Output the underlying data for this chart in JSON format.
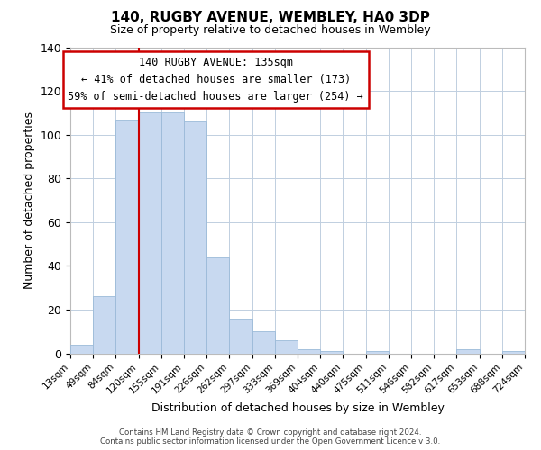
{
  "title": "140, RUGBY AVENUE, WEMBLEY, HA0 3DP",
  "subtitle": "Size of property relative to detached houses in Wembley",
  "xlabel": "Distribution of detached houses by size in Wembley",
  "ylabel": "Number of detached properties",
  "bar_values": [
    4,
    26,
    107,
    110,
    110,
    106,
    44,
    16,
    10,
    6,
    2,
    1,
    0,
    1,
    0,
    0,
    0,
    2,
    0,
    1
  ],
  "bin_labels": [
    "13sqm",
    "49sqm",
    "84sqm",
    "120sqm",
    "155sqm",
    "191sqm",
    "226sqm",
    "262sqm",
    "297sqm",
    "333sqm",
    "369sqm",
    "404sqm",
    "440sqm",
    "475sqm",
    "511sqm",
    "546sqm",
    "582sqm",
    "617sqm",
    "653sqm",
    "688sqm",
    "724sqm"
  ],
  "bar_color": "#c8d9f0",
  "bar_edge_color": "#9bbad8",
  "ylim": [
    0,
    140
  ],
  "yticks": [
    0,
    20,
    40,
    60,
    80,
    100,
    120,
    140
  ],
  "vline_x": 3,
  "vline_color": "#cc0000",
  "annotation_box_text": "140 RUGBY AVENUE: 135sqm\n← 41% of detached houses are smaller (173)\n59% of semi-detached houses are larger (254) →",
  "annotation_box_color": "#ffffff",
  "annotation_box_edge_color": "#cc0000",
  "footer_line1": "Contains HM Land Registry data © Crown copyright and database right 2024.",
  "footer_line2": "Contains public sector information licensed under the Open Government Licence v 3.0.",
  "background_color": "#ffffff",
  "grid_color": "#c0cfe0",
  "title_fontsize": 11,
  "subtitle_fontsize": 9
}
